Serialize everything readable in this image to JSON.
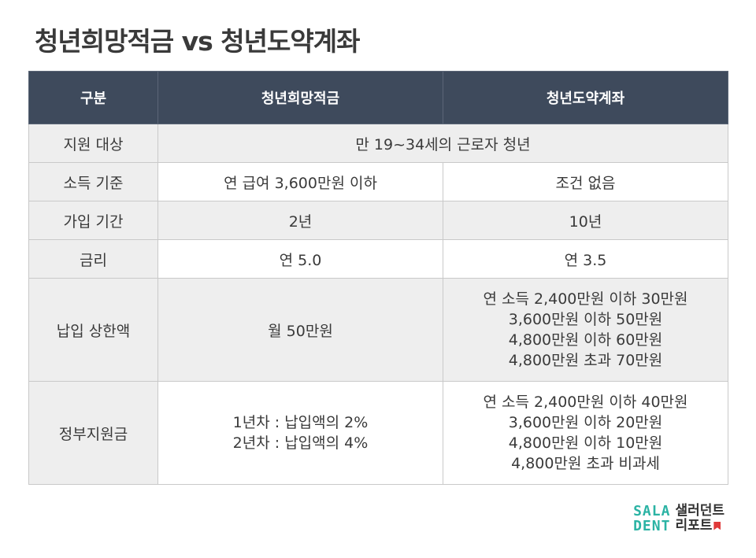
{
  "title": "청년희망적금 vs 청년도약계좌",
  "table": {
    "headers": [
      "구분",
      "청년희망적금",
      "청년도약계좌"
    ],
    "rows": {
      "target": {
        "label": "지원 대상",
        "value": "만 19~34세의 근로자 청년"
      },
      "income": {
        "label": "소득 기준",
        "a": "연 급여 3,600만원 이하",
        "b": "조건 없음"
      },
      "period": {
        "label": "가입 기간",
        "a": "2년",
        "b": "10년"
      },
      "rate": {
        "label": "금리",
        "a": "연 5.0",
        "b": "연 3.5"
      },
      "limit": {
        "label": "납입 상한액",
        "a": "월 50만원",
        "b": [
          "연 소득 2,400만원 이하 30만원",
          "3,600만원 이하 50만원",
          "4,800만원 이하 60만원",
          "4,800만원 초과 70만원"
        ]
      },
      "subsidy": {
        "label": "정부지원금",
        "a": [
          "1년차 : 납입액의 2%",
          "2년차 : 납입액의 4%"
        ],
        "b": [
          "연 소득 2,400만원 이하 40만원",
          "3,600만원 이하 20만원",
          "4,800만원 이하 10만원",
          "4,800만원 초과 비과세"
        ]
      }
    }
  },
  "logo": {
    "mark_line1": "SALA",
    "mark_line2": "DENT",
    "name_line1": "샐러던트",
    "name_line2": "리포트"
  },
  "colors": {
    "header_bg": "#3e4a5c",
    "label_bg": "#eeeeee",
    "accent": "#2bb3a4",
    "flag": "#e03a3a"
  }
}
